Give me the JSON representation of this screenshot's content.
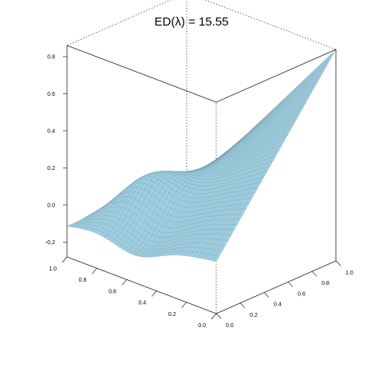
{
  "chart_data": {
    "type": "surface",
    "title": "ED(λ) = 15.55",
    "surface_color": "#9ecfe0",
    "mesh_color": "#4a6e7c",
    "x_ticks": [
      "0.0",
      "0.2",
      "0.4",
      "0.6",
      "0.8",
      "1.0"
    ],
    "y_ticks": [
      "0.0",
      "0.2",
      "0.4",
      "0.6",
      "0.8",
      "1.0"
    ],
    "z_ticks": [
      "-0.2",
      "0.0",
      "0.2",
      "0.4",
      "0.6",
      "0.8"
    ],
    "x_tick_values": [
      0.0,
      0.2,
      0.4,
      0.6,
      0.8,
      1.0
    ],
    "y_tick_values": [
      0.0,
      0.2,
      0.4,
      0.6,
      0.8,
      1.0
    ],
    "z_tick_values": [
      -0.2,
      0.0,
      0.2,
      0.4,
      0.6,
      0.8
    ],
    "xlim": [
      0,
      1
    ],
    "ylim": [
      0,
      1
    ],
    "zlim": [
      -0.28,
      0.86
    ],
    "corner_heights": {
      "x0_y0": 0.0,
      "x1_y0": -0.12,
      "x0_y1": 0.86,
      "x1_y1": -0.21
    }
  }
}
